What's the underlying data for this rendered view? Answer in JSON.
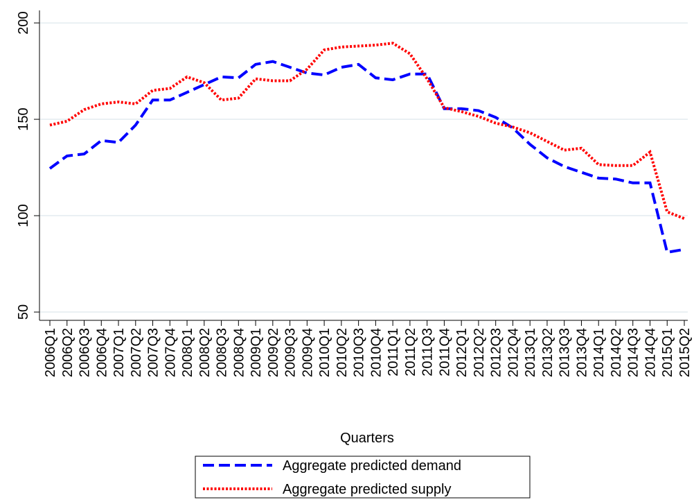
{
  "chart_data": {
    "type": "line",
    "x_label": "Quarters",
    "categories": [
      "2006Q1",
      "2006Q2",
      "2006Q3",
      "2006Q4",
      "2007Q1",
      "2007Q2",
      "2007Q3",
      "2007Q4",
      "2008Q1",
      "2008Q2",
      "2008Q3",
      "2008Q4",
      "2009Q1",
      "2009Q2",
      "2009Q3",
      "2009Q4",
      "2010Q1",
      "2010Q2",
      "2010Q3",
      "2010Q4",
      "2011Q1",
      "2011Q2",
      "2011Q3",
      "2011Q4",
      "2012Q1",
      "2012Q2",
      "2012Q3",
      "2012Q4",
      "2013Q1",
      "2013Q2",
      "2013Q3",
      "2013Q4",
      "2014Q1",
      "2014Q2",
      "2014Q3",
      "2014Q4",
      "2015Q1",
      "2015Q2"
    ],
    "series": [
      {
        "name": "Aggregate predicted demand",
        "color": "#0000ff",
        "dash": "dash",
        "values": [
          124.5,
          131,
          132,
          139,
          138,
          147,
          160,
          160,
          164,
          168,
          172,
          171.5,
          178.5,
          180,
          177,
          174,
          173,
          177,
          178.5,
          171.5,
          170.5,
          173.5,
          173.5,
          155.5,
          155.5,
          154.5,
          151,
          145.5,
          137,
          130,
          125.5,
          122.5,
          119.5,
          119,
          117,
          117,
          81,
          82.5
        ]
      },
      {
        "name": "Aggregate predicted supply",
        "color": "#ff0000",
        "dash": "dot",
        "values": [
          147,
          149,
          155,
          158,
          159,
          158,
          165,
          166,
          172,
          169,
          160,
          161,
          171,
          170,
          170,
          176,
          186,
          187.5,
          188,
          188.5,
          189.5,
          184,
          171,
          156,
          154,
          151.5,
          148,
          146,
          143,
          138.5,
          134,
          135,
          126.5,
          126,
          126,
          133,
          102,
          98.5
        ]
      }
    ],
    "ylim": [
      45.7,
      206.5
    ],
    "yticks": [
      50,
      100,
      150,
      200
    ],
    "grid": true,
    "legend": "bottom"
  }
}
